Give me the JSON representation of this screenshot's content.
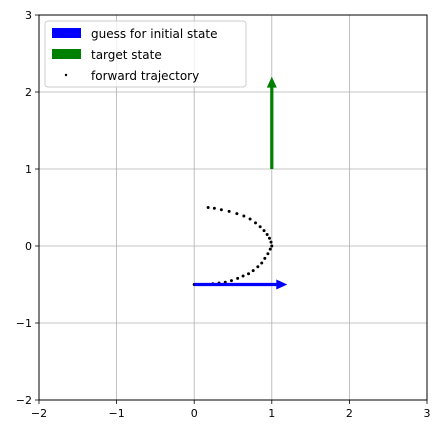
{
  "chart_data": {
    "type": "scatter",
    "title": "",
    "xlabel": "",
    "ylabel": "",
    "xlim": [
      -2,
      3
    ],
    "ylim": [
      -2,
      3
    ],
    "xticks": [
      -2,
      -1,
      0,
      1,
      2,
      3
    ],
    "yticks": [
      -2,
      -1,
      0,
      1,
      2,
      3
    ],
    "grid": true,
    "legend": {
      "placement": "top-left",
      "entries": [
        {
          "label": "guess for initial state",
          "marker": "arrow",
          "color": "#0000ff"
        },
        {
          "label": "target state",
          "marker": "arrow",
          "color": "#008000"
        },
        {
          "label": "forward trajectory",
          "marker": "dot",
          "color": "#000000"
        }
      ]
    },
    "arrows": [
      {
        "name": "guess for initial state",
        "x": 0.0,
        "y": -0.5,
        "dx": 1.2,
        "dy": 0.0,
        "color": "#0000ff"
      },
      {
        "name": "target state",
        "x": 1.0,
        "y": 1.0,
        "dx": 0.0,
        "dy": 1.2,
        "color": "#008000"
      }
    ],
    "series": [
      {
        "name": "forward trajectory",
        "color": "#000000",
        "x": [
          0.0,
          0.08,
          0.16,
          0.24,
          0.32,
          0.4,
          0.48,
          0.56,
          0.63,
          0.7,
          0.76,
          0.82,
          0.87,
          0.91,
          0.95,
          0.98,
          1.0,
          0.99,
          0.97,
          0.94,
          0.9,
          0.85,
          0.79,
          0.72,
          0.64,
          0.55,
          0.45,
          0.35,
          0.26,
          0.18
        ],
        "y": [
          -0.5,
          -0.5,
          -0.5,
          -0.49,
          -0.48,
          -0.47,
          -0.45,
          -0.42,
          -0.39,
          -0.36,
          -0.32,
          -0.27,
          -0.22,
          -0.16,
          -0.1,
          -0.04,
          0.0,
          0.05,
          0.1,
          0.15,
          0.2,
          0.25,
          0.3,
          0.35,
          0.39,
          0.42,
          0.45,
          0.47,
          0.49,
          0.5
        ]
      }
    ]
  }
}
